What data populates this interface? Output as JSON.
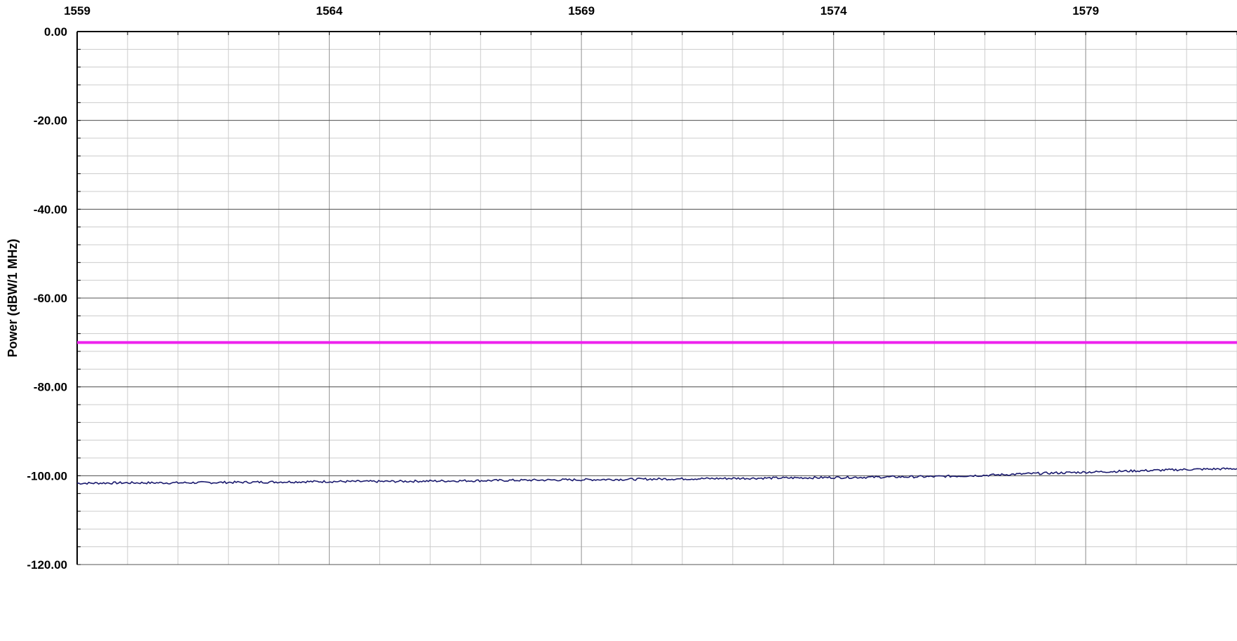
{
  "chart_data": {
    "type": "line",
    "title": "",
    "xlabel": "",
    "ylabel": "Power (dBW/1 MHz)",
    "x_axis_position": "top",
    "xlim": [
      1559,
      1582
    ],
    "ylim": [
      -120,
      0
    ],
    "x_ticks": [
      1559,
      1564,
      1569,
      1574,
      1579
    ],
    "x_tick_labels": [
      "1559",
      "1564",
      "1569",
      "1574",
      "1579"
    ],
    "y_ticks": [
      0,
      -20,
      -40,
      -60,
      -80,
      -100,
      -120
    ],
    "y_tick_labels": [
      "0.00",
      "-20.00",
      "-40.00",
      "-60.00",
      "-80.00",
      "-100.00",
      "-120.00"
    ],
    "grid": true,
    "legend": "none",
    "series": [
      {
        "color": "#ee22ee",
        "x": [
          1559,
          1582
        ],
        "y": [
          -70,
          -70
        ]
      },
      {
        "color": "#1a1a6e",
        "x": [
          1559,
          1560,
          1561,
          1562,
          1563,
          1564,
          1565,
          1566,
          1567,
          1568,
          1569,
          1570,
          1571,
          1572,
          1573,
          1574,
          1575,
          1576,
          1577,
          1578,
          1579,
          1580,
          1581,
          1582
        ],
        "y": [
          -101.7,
          -101.6,
          -101.6,
          -101.5,
          -101.4,
          -101.3,
          -101.3,
          -101.2,
          -101.1,
          -101.0,
          -100.9,
          -100.8,
          -100.7,
          -100.6,
          -100.5,
          -100.4,
          -100.3,
          -100.2,
          -99.9,
          -99.5,
          -99.2,
          -98.9,
          -98.6,
          -98.4
        ]
      }
    ]
  }
}
